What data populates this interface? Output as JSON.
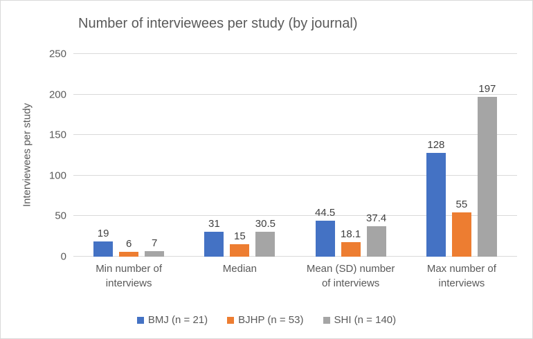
{
  "chart_data": {
    "type": "bar",
    "title": "Number of interviewees per study (by journal)",
    "xlabel": "",
    "ylabel": "Interviewees per study",
    "categories": [
      "Min number of interviews",
      "Median",
      "Mean (SD) number of interviews",
      "Max number of interviews"
    ],
    "series": [
      {
        "name": "BMJ (n = 21)",
        "color": "#4472C4",
        "values": [
          19,
          31,
          44.5,
          128
        ]
      },
      {
        "name": "BJHP (n = 53)",
        "color": "#ED7D31",
        "values": [
          6,
          15,
          18.1,
          55
        ]
      },
      {
        "name": "SHI (n = 140)",
        "color": "#A5A5A5",
        "values": [
          7,
          30.5,
          37.4,
          197
        ]
      }
    ],
    "ylim": [
      0,
      250
    ],
    "yticks": [
      0,
      50,
      100,
      150,
      200,
      250
    ],
    "grid": true,
    "legend_position": "bottom",
    "colors": {
      "gridline": "#d9d9d9",
      "axis_text": "#595959",
      "title_text": "#595959",
      "value_label_text": "#404040",
      "chart_border": "#d9d9d9",
      "background": "#ffffff"
    }
  }
}
